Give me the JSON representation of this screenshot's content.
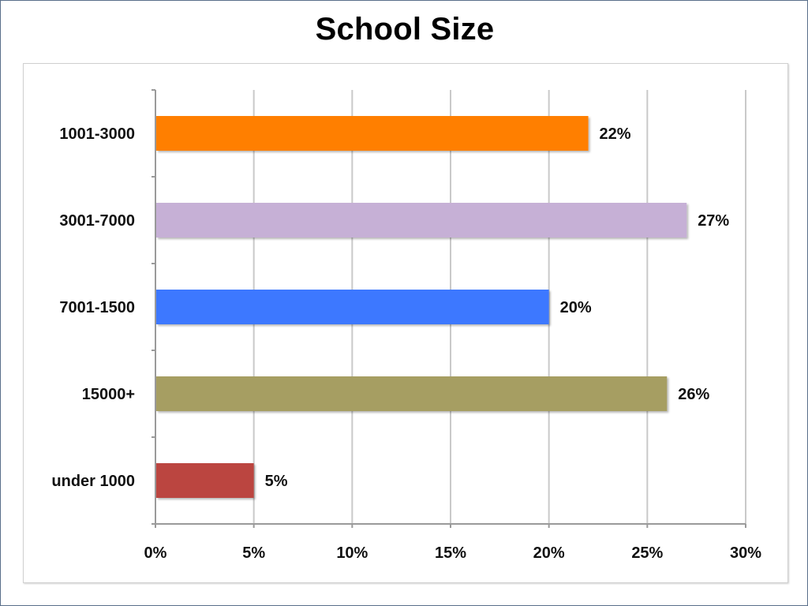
{
  "chart_data": {
    "type": "bar",
    "orientation": "horizontal",
    "title": "School Size",
    "categories": [
      "1001-3000",
      "3001-7000",
      "7001-1500",
      "15000+",
      "under 1000"
    ],
    "values": [
      22,
      27,
      20,
      26,
      5
    ],
    "data_labels": [
      "22%",
      "27%",
      "20%",
      "26%",
      "5%"
    ],
    "colors": [
      "#FF7F00",
      "#C6B0D6",
      "#3D78FF",
      "#A69E62",
      "#BB4440"
    ],
    "xlim": [
      0,
      30
    ],
    "x_ticks": [
      0,
      5,
      10,
      15,
      20,
      25,
      30
    ],
    "x_tick_labels": [
      "0%",
      "5%",
      "10%",
      "15%",
      "20%",
      "25%",
      "30%"
    ],
    "xlabel": "",
    "ylabel": "",
    "grid": true,
    "legend": "none"
  }
}
